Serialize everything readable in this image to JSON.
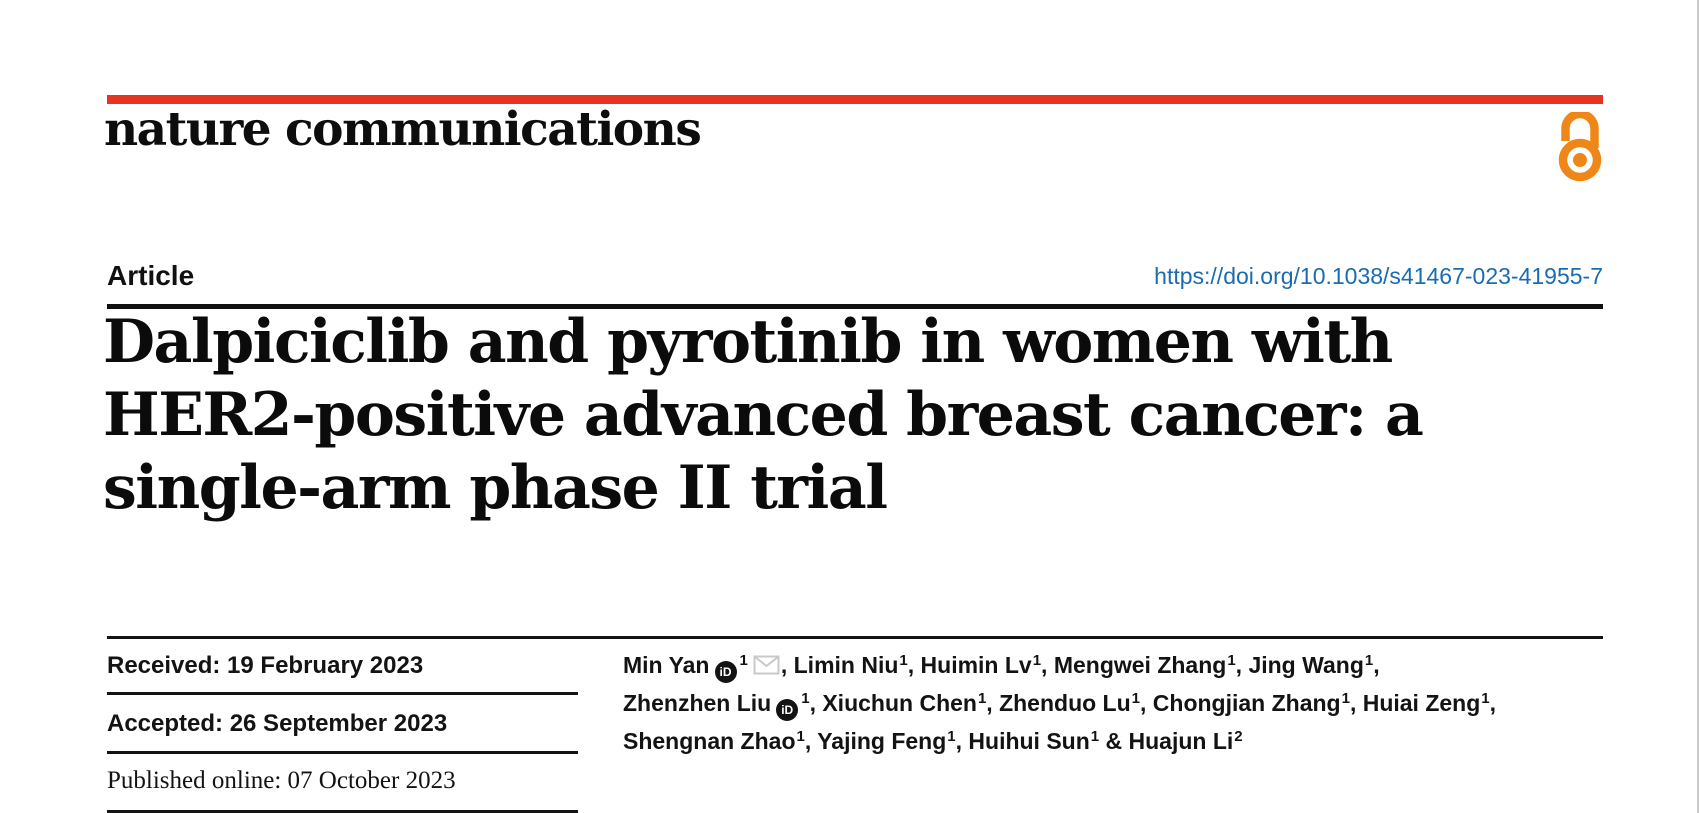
{
  "page": {
    "edge_line_color": "#c9c9c9",
    "background": "#ffffff"
  },
  "header": {
    "journal_wordmark": "nature communications",
    "brand_bar_color": "#e63322",
    "open_access_icon_color": "#ef8718"
  },
  "article_meta": {
    "type_label": "Article",
    "doi_text": "https://doi.org/10.1038/s41467-023-41955-7",
    "doi_color": "#1a6cb0"
  },
  "title": {
    "lines": [
      "Dalpiciclib and pyrotinib in women with",
      "HER2-positive advanced breast cancer: a",
      "single-arm phase II trial"
    ]
  },
  "history": {
    "received": "Received: 19 February 2023",
    "accepted": "Accepted: 26 September 2023",
    "published": "Published online: 07 October 2023"
  },
  "authors": {
    "orcid_icon_text": "iD",
    "lines": [
      [
        {
          "text": "Min Yan"
        },
        {
          "icon": "orcid"
        },
        {
          "sup": "1"
        },
        {
          "icon": "mail"
        },
        {
          "text": ", Limin Niu"
        },
        {
          "sup": "1"
        },
        {
          "text": ", Huimin Lv"
        },
        {
          "sup": "1"
        },
        {
          "text": ", Mengwei Zhang"
        },
        {
          "sup": "1"
        },
        {
          "text": ", Jing Wang"
        },
        {
          "sup": "1"
        },
        {
          "text": ","
        }
      ],
      [
        {
          "text": "Zhenzhen Liu"
        },
        {
          "icon": "orcid"
        },
        {
          "sup": "1"
        },
        {
          "text": ", Xiuchun Chen"
        },
        {
          "sup": "1"
        },
        {
          "text": ", Zhenduo Lu"
        },
        {
          "sup": "1"
        },
        {
          "text": ", Chongjian Zhang"
        },
        {
          "sup": "1"
        },
        {
          "text": ", Huiai Zeng"
        },
        {
          "sup": "1"
        },
        {
          "text": ","
        }
      ],
      [
        {
          "text": "Shengnan Zhao"
        },
        {
          "sup": "1"
        },
        {
          "text": ", Yajing Feng"
        },
        {
          "sup": "1"
        },
        {
          "text": ", Huihui Sun"
        },
        {
          "sup": "1"
        },
        {
          "text": " & Huajun Li"
        },
        {
          "sup": "2"
        }
      ]
    ]
  }
}
